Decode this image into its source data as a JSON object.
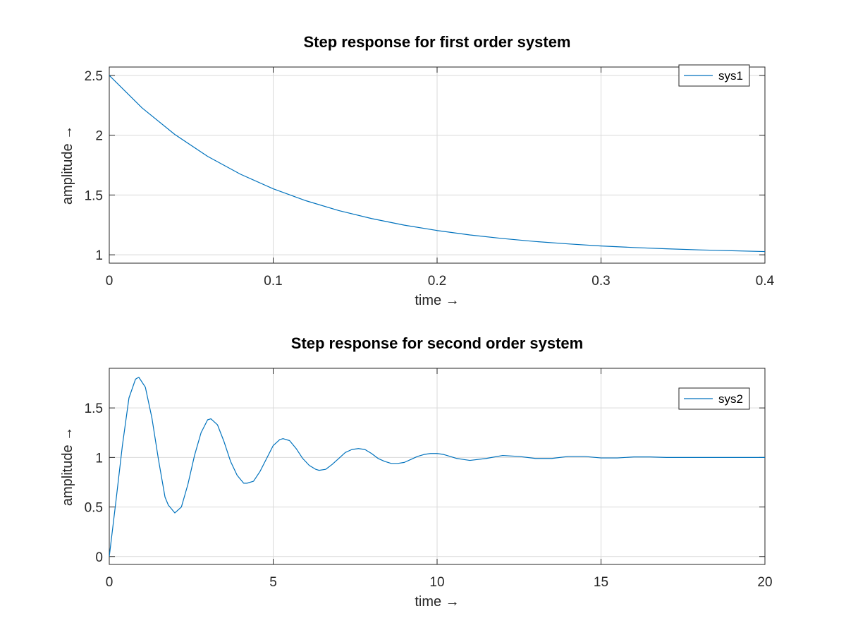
{
  "chart_data": [
    {
      "type": "line",
      "title": "Step response for first order system",
      "xlabel": "time →",
      "ylabel": "amplitude →",
      "xlim": [
        0,
        0.4
      ],
      "ylim": [
        0.93,
        2.57
      ],
      "xticks": [
        0,
        0.1,
        0.2,
        0.3,
        0.4
      ],
      "xtick_labels": [
        "0",
        "0.1",
        "0.2",
        "0.3",
        "0.4"
      ],
      "yticks": [
        1,
        1.5,
        2,
        2.5
      ],
      "ytick_labels": [
        "1",
        "1.5",
        "2",
        "2.5"
      ],
      "grid": true,
      "legend_position": "top-right",
      "series": [
        {
          "name": "sys1",
          "color": "#0072bd",
          "x": [
            0,
            0.02,
            0.04,
            0.06,
            0.08,
            0.1,
            0.12,
            0.14,
            0.16,
            0.18,
            0.2,
            0.22,
            0.24,
            0.26,
            0.28,
            0.3,
            0.32,
            0.34,
            0.36,
            0.38,
            0.4
          ],
          "y": [
            2.5,
            2.228,
            2.006,
            1.823,
            1.674,
            1.552,
            1.452,
            1.37,
            1.303,
            1.248,
            1.203,
            1.166,
            1.136,
            1.111,
            1.091,
            1.074,
            1.061,
            1.05,
            1.041,
            1.034,
            1.027
          ]
        }
      ]
    },
    {
      "type": "line",
      "title": "Step response for second order system",
      "xlabel": "time →",
      "ylabel": "amplitude →",
      "xlim": [
        0,
        20
      ],
      "ylim": [
        -0.08,
        1.9
      ],
      "xticks": [
        0,
        5,
        10,
        15,
        20
      ],
      "xtick_labels": [
        "0",
        "5",
        "10",
        "15",
        "20"
      ],
      "yticks": [
        0,
        0.5,
        1,
        1.5
      ],
      "ytick_labels": [
        "0",
        "0.5",
        "1",
        "1.5"
      ],
      "grid": true,
      "legend_position": "top-right",
      "series": [
        {
          "name": "sys2",
          "color": "#0072bd",
          "x": [
            0,
            0.2,
            0.4,
            0.6,
            0.8,
            0.9,
            1.1,
            1.3,
            1.5,
            1.7,
            1.8,
            2.0,
            2.2,
            2.4,
            2.6,
            2.8,
            3.0,
            3.1,
            3.3,
            3.5,
            3.7,
            3.9,
            4.1,
            4.2,
            4.4,
            4.6,
            4.8,
            5.0,
            5.2,
            5.3,
            5.5,
            5.7,
            5.9,
            6.1,
            6.3,
            6.4,
            6.6,
            6.8,
            7.0,
            7.2,
            7.4,
            7.6,
            7.8,
            8.0,
            8.2,
            8.4,
            8.6,
            8.8,
            9.0,
            9.2,
            9.4,
            9.6,
            9.8,
            10.0,
            10.2,
            10.4,
            10.6,
            10.8,
            11.0,
            11.5,
            12.0,
            12.5,
            13.0,
            13.5,
            14.0,
            14.5,
            15.0,
            15.5,
            16.0,
            16.5,
            17.0,
            17.5,
            18.0,
            18.5,
            19.0,
            19.5,
            20.0
          ],
          "y": [
            0,
            0.55,
            1.12,
            1.6,
            1.79,
            1.81,
            1.71,
            1.4,
            0.98,
            0.6,
            0.52,
            0.44,
            0.5,
            0.73,
            1.02,
            1.25,
            1.38,
            1.39,
            1.33,
            1.16,
            0.96,
            0.82,
            0.74,
            0.74,
            0.76,
            0.86,
            0.99,
            1.12,
            1.18,
            1.19,
            1.17,
            1.09,
            0.99,
            0.92,
            0.88,
            0.87,
            0.88,
            0.93,
            0.99,
            1.05,
            1.08,
            1.09,
            1.08,
            1.04,
            0.99,
            0.96,
            0.94,
            0.94,
            0.95,
            0.98,
            1.01,
            1.03,
            1.04,
            1.04,
            1.03,
            1.01,
            0.99,
            0.98,
            0.97,
            0.99,
            1.02,
            1.01,
            0.99,
            0.99,
            1.01,
            1.01,
            0.995,
            0.995,
            1.005,
            1.005,
            1.0,
            1.0,
            1.0,
            1.0,
            1.0,
            1.0,
            1.0
          ]
        }
      ]
    }
  ]
}
